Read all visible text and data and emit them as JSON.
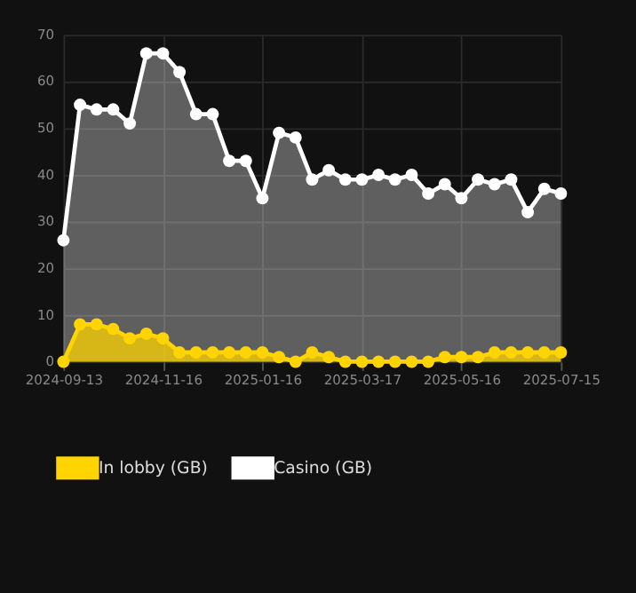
{
  "chart_data": {
    "type": "area",
    "categories": [
      "2024-09-13",
      null,
      null,
      null,
      null,
      null,
      "2024-11-16",
      null,
      null,
      null,
      null,
      null,
      "2025-01-16",
      null,
      null,
      null,
      null,
      null,
      "2025-03-17",
      null,
      null,
      null,
      null,
      null,
      "2025-05-16",
      null,
      null,
      null,
      null,
      null,
      "2025-07-15"
    ],
    "series": [
      {
        "name": "In lobby (GB)",
        "color": "#ffd400",
        "values": [
          0,
          8,
          8,
          7,
          5,
          6,
          5,
          2,
          2,
          2,
          2,
          2,
          2,
          1,
          0,
          2,
          1,
          0,
          0,
          0,
          0,
          0,
          0,
          1,
          1,
          1,
          2,
          2,
          2,
          2,
          2
        ]
      },
      {
        "name": "Casino (GB)",
        "color": "#ffffff",
        "values": [
          26,
          55,
          54,
          54,
          51,
          66,
          66,
          62,
          53,
          53,
          43,
          43,
          35,
          49,
          48,
          39,
          41,
          39,
          39,
          40,
          39,
          40,
          36,
          38,
          35,
          39,
          38,
          39,
          32,
          37,
          36
        ]
      }
    ],
    "ylim": [
      0,
      70
    ],
    "yticks": [
      0,
      10,
      20,
      30,
      40,
      50,
      60,
      70
    ],
    "grid": true,
    "legend": "bottom",
    "marker": "circle",
    "line_style": "solid"
  }
}
